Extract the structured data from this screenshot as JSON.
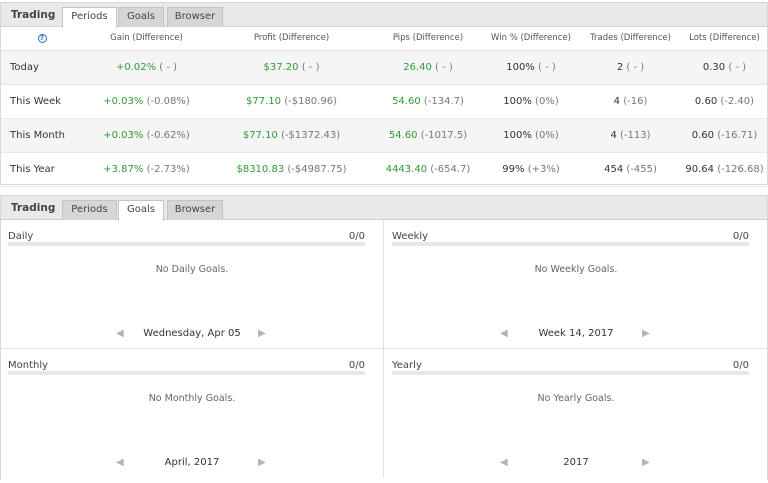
{
  "periods_widget": {
    "title": "Trading",
    "tabs": [
      "Periods",
      "Goals",
      "Browser"
    ],
    "active_tab": "Periods",
    "help_glyph": "?",
    "columns": [
      "Gain (Difference)",
      "Profit (Difference)",
      "Pips (Difference)",
      "Win % (Difference)",
      "Trades (Difference)",
      "Lots (Difference)"
    ],
    "rows": [
      {
        "period": "Today",
        "gain": "+0.02%",
        "gain_d": "( - )",
        "profit": "$37.20",
        "profit_d": "( - )",
        "pips": "26.40",
        "pips_d": "( - )",
        "win": "100%",
        "win_d": "( - )",
        "trades": "2",
        "trades_d": "( - )",
        "lots": "0.30",
        "lots_d": "( - )"
      },
      {
        "period": "This Week",
        "gain": "+0.03%",
        "gain_d": "(-0.08%)",
        "profit": "$77.10",
        "profit_d": "(-$180.96)",
        "pips": "54.60",
        "pips_d": "(-134.7)",
        "win": "100%",
        "win_d": "(0%)",
        "trades": "4",
        "trades_d": "(-16)",
        "lots": "0.60",
        "lots_d": "(-2.40)"
      },
      {
        "period": "This Month",
        "gain": "+0.03%",
        "gain_d": "(-0.62%)",
        "profit": "$77.10",
        "profit_d": "(-$1372.43)",
        "pips": "54.60",
        "pips_d": "(-1017.5)",
        "win": "100%",
        "win_d": "(0%)",
        "trades": "4",
        "trades_d": "(-113)",
        "lots": "0.60",
        "lots_d": "(-16.71)"
      },
      {
        "period": "This Year",
        "gain": "+3.87%",
        "gain_d": "(-2.73%)",
        "profit": "$8310.83",
        "profit_d": "(-$4987.75)",
        "pips": "4443.40",
        "pips_d": "(-654.7)",
        "win": "99%",
        "win_d": "(+3%)",
        "trades": "454",
        "trades_d": "(-455)",
        "lots": "90.64",
        "lots_d": "(-126.68)"
      }
    ]
  },
  "goals_widget": {
    "title": "Trading",
    "tabs": [
      "Periods",
      "Goals",
      "Browser"
    ],
    "active_tab": "Goals",
    "panels": {
      "daily": {
        "title": "Daily",
        "count": "0/0",
        "empty": "No Daily Goals.",
        "nav": "Wednesday, Apr 05",
        "progress": 0
      },
      "weekly": {
        "title": "Weekly",
        "count": "0/0",
        "empty": "No Weekly Goals.",
        "nav": "Week 14, 2017",
        "progress": 0
      },
      "monthly": {
        "title": "Monthly",
        "count": "0/0",
        "empty": "No Monthly Goals.",
        "nav": "April, 2017",
        "progress": 0
      },
      "yearly": {
        "title": "Yearly",
        "count": "0/0",
        "empty": "No Yearly Goals.",
        "nav": "2017",
        "progress": 0
      }
    },
    "nav_prev_glyph": "◀",
    "nav_next_glyph": "▶"
  },
  "colors": {
    "positive": "#2e9c33",
    "difference": "#777777",
    "help_icon": "#2a6fc4"
  }
}
